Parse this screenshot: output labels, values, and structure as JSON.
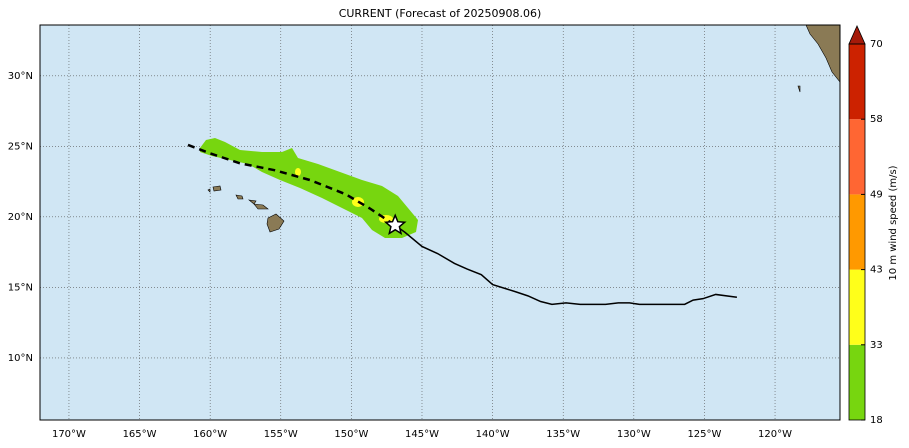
{
  "map": {
    "title": "CURRENT (Forecast of 20250908.06)",
    "lonlim": [
      -172.05,
      -115.4
    ],
    "latlim": [
      5.6,
      33.6
    ],
    "xticks": [
      {
        "value": -170,
        "label": "170°W"
      },
      {
        "value": -165,
        "label": "165°W"
      },
      {
        "value": -160,
        "label": "160°W"
      },
      {
        "value": -155,
        "label": "155°W"
      },
      {
        "value": -150,
        "label": "150°W"
      },
      {
        "value": -145,
        "label": "145°W"
      },
      {
        "value": -140,
        "label": "140°W"
      },
      {
        "value": -135,
        "label": "135°W"
      },
      {
        "value": -130,
        "label": "130°W"
      },
      {
        "value": -125,
        "label": "125°W"
      },
      {
        "value": -120,
        "label": "120°W"
      }
    ],
    "yticks": [
      {
        "value": 10,
        "label": "10°N"
      },
      {
        "value": 15,
        "label": "15°N"
      },
      {
        "value": 20,
        "label": "20°N"
      },
      {
        "value": 25,
        "label": "25°N"
      },
      {
        "value": 30,
        "label": "30°N"
      }
    ],
    "grid": true,
    "tracks": [
      {
        "style": "dashed",
        "color": "#000000",
        "lon": [
          -161.57,
          -160.0,
          -157.9,
          -155.4,
          -152.9,
          -150.4,
          -148.7,
          -146.9
        ],
        "lat": [
          25.1,
          24.5,
          23.8,
          23.3,
          22.6,
          21.6,
          20.6,
          19.4
        ]
      },
      {
        "style": "solid",
        "color": "#000000",
        "lon": [
          -146.9,
          -146.2,
          -145.0,
          -143.9,
          -142.7,
          -141.8,
          -140.8,
          -140.0,
          -138.4,
          -137.5,
          -136.6,
          -135.8,
          -134.8,
          -133.8,
          -132.0,
          -131.1,
          -130.3,
          -129.6,
          -126.4,
          -125.8,
          -125.1,
          -124.2,
          -122.7
        ],
        "lat": [
          19.4,
          18.9,
          17.9,
          17.4,
          16.7,
          16.3,
          15.9,
          15.2,
          14.7,
          14.4,
          14.0,
          13.8,
          13.9,
          13.8,
          13.8,
          13.9,
          13.9,
          13.8,
          13.8,
          14.1,
          14.2,
          14.5,
          14.3
        ]
      }
    ],
    "current_position": {
      "lon": -146.9,
      "lat": 19.4
    },
    "colorbar": {
      "label": "10 m wind speed (m/s)",
      "ticks": [
        18,
        33,
        43,
        49,
        58,
        70
      ],
      "colors": [
        "#77d60f",
        "#ffff1a",
        "#ff9900",
        "#ff6633",
        "#cc2200"
      ],
      "extend_color": "#a51a0a"
    }
  }
}
